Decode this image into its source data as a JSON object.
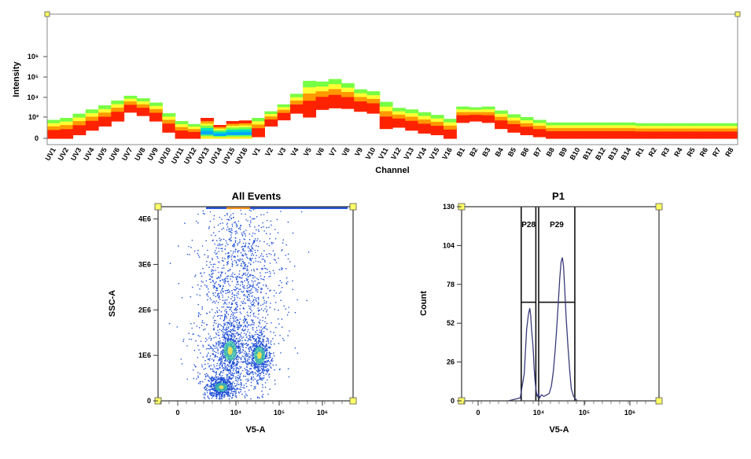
{
  "chart_data": [
    {
      "type": "heatmap",
      "title": "",
      "xlabel": "Channel",
      "ylabel": "Intensity",
      "y_scale": "log",
      "y_ticks": [
        "0",
        "10³",
        "10⁴",
        "10⁵",
        "10⁶"
      ],
      "categories": [
        "UV1",
        "UV2",
        "UV3",
        "UV4",
        "UV5",
        "UV6",
        "UV7",
        "UV8",
        "UV9",
        "UV10",
        "UV11",
        "UV12",
        "UV13",
        "UV14",
        "UV15",
        "UV16",
        "V1",
        "V2",
        "V3",
        "V4",
        "V5",
        "V6",
        "V7",
        "V8",
        "V9",
        "V10",
        "V11",
        "V12",
        "V13",
        "V14",
        "V15",
        "V16",
        "B1",
        "B2",
        "B3",
        "B4",
        "B5",
        "B6",
        "B7",
        "B8",
        "B9",
        "B10",
        "B11",
        "B12",
        "B13",
        "B14",
        "R1",
        "R2",
        "R3",
        "R4",
        "R5",
        "R6",
        "R7",
        "R8"
      ],
      "low": [
        0,
        0,
        50,
        150,
        300,
        600,
        1800,
        1200,
        600,
        100,
        0,
        0,
        0,
        0,
        0,
        0,
        20,
        300,
        700,
        1600,
        1000,
        2500,
        3000,
        2800,
        2000,
        1600,
        200,
        250,
        150,
        80,
        50,
        0,
        500,
        600,
        500,
        200,
        100,
        50,
        20,
        0,
        0,
        0,
        0,
        0,
        0,
        0,
        0,
        0,
        0,
        0,
        0,
        0,
        0,
        0
      ],
      "median": [
        150,
        200,
        300,
        500,
        800,
        1500,
        4500,
        3000,
        1800,
        400,
        150,
        60,
        40,
        40,
        60,
        80,
        150,
        700,
        1500,
        4000,
        15000,
        18000,
        22000,
        16000,
        9000,
        6000,
        1200,
        900,
        600,
        400,
        300,
        150,
        1200,
        1200,
        1100,
        600,
        450,
        350,
        250,
        180,
        130,
        100,
        110,
        110,
        100,
        90,
        70,
        80,
        80,
        70,
        70,
        70,
        70,
        60
      ],
      "high": [
        700,
        900,
        1500,
        2500,
        4000,
        7000,
        12000,
        9000,
        5500,
        1600,
        600,
        400,
        900,
        350,
        600,
        650,
        900,
        2000,
        4500,
        15000,
        65000,
        60000,
        80000,
        50000,
        25000,
        20000,
        6000,
        3000,
        2500,
        1800,
        1300,
        800,
        3500,
        3200,
        3500,
        2200,
        1400,
        1000,
        700,
        500,
        500,
        500,
        500,
        500,
        500,
        500,
        450,
        450,
        450,
        450,
        450,
        450,
        450,
        450
      ],
      "color_scale": [
        "#00a0ff",
        "#00e0e0",
        "#60ff40",
        "#ffff00",
        "#ff9900",
        "#ff0000"
      ]
    },
    {
      "type": "scatter",
      "title": "All Events",
      "xlabel": "V5-A",
      "ylabel": "SSC-A",
      "x_scale": "biexponential",
      "x_ticks": [
        "0",
        "10⁴",
        "10⁵",
        "10⁶"
      ],
      "y_ticks": [
        "0",
        "1E6",
        "2E6",
        "3E6",
        "4E6"
      ],
      "ylim": [
        0,
        4200000
      ],
      "populations": [
        {
          "x_center": 1000,
          "y_center": 300000,
          "count": 900
        },
        {
          "x_center": 4000,
          "y_center": 1100000,
          "count": 700
        },
        {
          "x_center": 35000,
          "y_center": 1000000,
          "count": 800
        },
        {
          "x_center": 12000,
          "y_center": 2600000,
          "count": 1400
        }
      ],
      "point_color": "#1f4fd6",
      "dense_color": "#3ec9a0"
    },
    {
      "type": "line",
      "title": "P1",
      "xlabel": "V5-A",
      "ylabel": "Count",
      "x_scale": "biexponential",
      "x_ticks": [
        "0",
        "10⁴",
        "10⁵",
        "10⁶"
      ],
      "y_ticks": [
        "0",
        "26",
        "52",
        "78",
        "104",
        "130"
      ],
      "ylim": [
        0,
        130
      ],
      "series": [
        {
          "x": [
            100,
            600,
            1100,
            1600,
            2100,
            2600,
            3000,
            3300,
            3600,
            4000,
            4500,
            5000,
            5700,
            6500,
            7500,
            8500,
            9500,
            10500,
            11500,
            13000,
            15000,
            17000,
            19000,
            21000,
            23000,
            25000,
            27000,
            29000,
            31000,
            33000,
            35000,
            37000,
            40000,
            44000,
            48000,
            52000,
            58000,
            70000
          ],
          "y": [
            0,
            2,
            18,
            48,
            58,
            62,
            57,
            50,
            44,
            40,
            32,
            22,
            14,
            8,
            4,
            3,
            5,
            2,
            4,
            3,
            4,
            5,
            10,
            20,
            34,
            50,
            66,
            82,
            93,
            96,
            90,
            76,
            56,
            36,
            20,
            8,
            3,
            0
          ]
        }
      ],
      "gates": [
        {
          "label": "P28",
          "x_from": 700,
          "x_to": 6500,
          "y": 66
        },
        {
          "label": "P29",
          "x_from": 10000,
          "x_to": 62000,
          "y": 66
        }
      ],
      "line_color": "#3a3a7a"
    }
  ]
}
